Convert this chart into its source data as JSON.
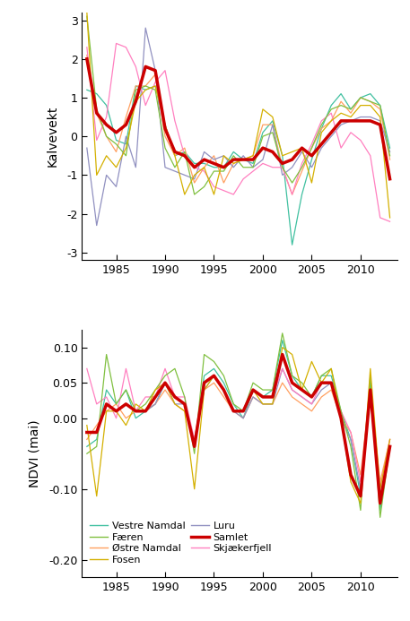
{
  "years": [
    1982,
    1983,
    1984,
    1985,
    1986,
    1987,
    1988,
    1989,
    1990,
    1991,
    1992,
    1993,
    1994,
    1995,
    1996,
    1997,
    1998,
    1999,
    2000,
    2001,
    2002,
    2003,
    2004,
    2005,
    2006,
    2007,
    2008,
    2009,
    2010,
    2011,
    2012,
    2013
  ],
  "kalve_vestre_namdal": [
    1.2,
    1.1,
    0.8,
    -0.1,
    -0.2,
    1.3,
    1.2,
    1.3,
    0.3,
    -0.5,
    -0.4,
    -0.7,
    -0.7,
    -0.8,
    -0.8,
    -0.4,
    -0.6,
    -0.7,
    0.1,
    0.4,
    -0.5,
    -2.8,
    -1.5,
    -0.6,
    0.2,
    0.8,
    1.1,
    0.7,
    1.0,
    1.1,
    0.8,
    -0.3
  ],
  "kalve_ostre_namdal": [
    2.1,
    0.6,
    0.0,
    -0.4,
    0.5,
    1.3,
    1.3,
    1.6,
    0.0,
    -0.5,
    -0.3,
    -1.2,
    -0.8,
    -0.5,
    -1.2,
    -0.7,
    -0.6,
    -0.5,
    0.3,
    0.3,
    -0.8,
    -1.5,
    -0.9,
    -0.3,
    0.2,
    0.4,
    0.9,
    0.6,
    1.0,
    0.9,
    0.7,
    -0.6
  ],
  "kalve_luru": [
    -0.3,
    -2.3,
    -1.0,
    -1.3,
    0.0,
    -0.8,
    2.8,
    1.7,
    -0.8,
    -0.9,
    -1.0,
    -1.1,
    -0.4,
    -0.6,
    -0.5,
    -0.8,
    -0.5,
    -0.8,
    -0.6,
    0.3,
    -1.0,
    -0.8,
    -0.4,
    -0.8,
    -0.3,
    0.0,
    0.3,
    0.4,
    0.5,
    0.5,
    0.4,
    -0.4
  ],
  "kalve_skjakerfjell": [
    2.3,
    -0.1,
    0.5,
    2.4,
    2.3,
    1.8,
    0.8,
    1.4,
    1.7,
    0.4,
    -0.5,
    -0.8,
    -0.9,
    -1.3,
    -1.4,
    -1.5,
    -1.1,
    -0.9,
    -0.7,
    -0.8,
    -0.8,
    -1.5,
    -0.7,
    -0.2,
    0.4,
    0.6,
    -0.3,
    0.1,
    -0.1,
    -0.5,
    -2.1,
    -2.2
  ],
  "kalve_faeren": [
    3.1,
    0.7,
    0.0,
    -0.2,
    -0.5,
    1.2,
    1.3,
    1.2,
    -0.3,
    -0.8,
    -0.4,
    -1.5,
    -1.3,
    -0.9,
    -0.9,
    -0.5,
    -0.8,
    -0.8,
    0.0,
    0.1,
    -0.8,
    -1.2,
    -0.8,
    -0.3,
    0.3,
    0.7,
    0.8,
    0.7,
    1.0,
    0.9,
    0.8,
    -0.5
  ],
  "kalve_fosen": [
    3.2,
    -1.0,
    -0.5,
    -0.8,
    -0.3,
    0.9,
    1.2,
    1.3,
    0.3,
    -0.5,
    -1.5,
    -1.0,
    -0.8,
    -1.5,
    -0.5,
    -0.7,
    -0.6,
    -0.5,
    0.7,
    0.5,
    -0.5,
    -0.4,
    -0.3,
    -1.2,
    0.1,
    0.4,
    0.6,
    0.5,
    0.8,
    0.8,
    0.5,
    -2.1
  ],
  "kalve_samlet": [
    2.0,
    0.6,
    0.3,
    0.1,
    0.3,
    0.9,
    1.8,
    1.7,
    0.2,
    -0.4,
    -0.5,
    -0.8,
    -0.6,
    -0.7,
    -0.8,
    -0.6,
    -0.6,
    -0.6,
    -0.3,
    -0.4,
    -0.7,
    -0.6,
    -0.3,
    -0.5,
    -0.2,
    0.1,
    0.4,
    0.4,
    0.4,
    0.4,
    0.3,
    -1.1
  ],
  "ndvi_vestre_namdal": [
    -0.04,
    -0.03,
    0.04,
    0.02,
    0.04,
    0.0,
    0.01,
    0.02,
    0.05,
    0.03,
    0.02,
    -0.04,
    0.06,
    0.07,
    0.05,
    0.02,
    0.0,
    0.04,
    0.03,
    0.04,
    0.11,
    0.06,
    0.04,
    0.03,
    0.06,
    0.06,
    0.01,
    -0.03,
    -0.11,
    0.05,
    -0.13,
    -0.04
  ],
  "ndvi_ostre_namdal": [
    -0.03,
    -0.01,
    0.01,
    0.02,
    0.0,
    0.01,
    0.01,
    0.02,
    0.04,
    0.02,
    0.01,
    -0.03,
    0.04,
    0.05,
    0.03,
    0.01,
    0.0,
    0.03,
    0.02,
    0.02,
    0.05,
    0.03,
    0.02,
    0.01,
    0.03,
    0.04,
    0.0,
    -0.02,
    -0.08,
    0.04,
    -0.09,
    -0.03
  ],
  "ndvi_luru": [
    -0.02,
    -0.02,
    0.02,
    0.01,
    0.02,
    0.01,
    0.01,
    0.02,
    0.05,
    0.02,
    0.02,
    -0.03,
    0.04,
    0.06,
    0.04,
    0.01,
    0.0,
    0.03,
    0.02,
    0.02,
    0.07,
    0.04,
    0.03,
    0.02,
    0.04,
    0.05,
    0.0,
    -0.03,
    -0.1,
    0.04,
    -0.11,
    -0.04
  ],
  "ndvi_skjakerfjell": [
    0.07,
    0.02,
    0.03,
    0.0,
    0.07,
    0.01,
    0.03,
    0.03,
    0.07,
    0.03,
    0.03,
    -0.03,
    0.05,
    0.06,
    0.04,
    0.01,
    0.01,
    0.04,
    0.03,
    0.03,
    0.07,
    0.04,
    0.03,
    0.02,
    0.05,
    0.05,
    0.01,
    -0.02,
    -0.09,
    0.04,
    -0.1,
    -0.03
  ],
  "ndvi_faeren": [
    -0.05,
    -0.04,
    0.09,
    0.02,
    0.04,
    0.01,
    0.02,
    0.04,
    0.06,
    0.07,
    0.03,
    -0.05,
    0.09,
    0.08,
    0.06,
    0.02,
    0.01,
    0.05,
    0.04,
    0.04,
    0.12,
    0.06,
    0.05,
    0.03,
    0.06,
    0.07,
    0.01,
    -0.04,
    -0.13,
    0.06,
    -0.14,
    -0.04
  ],
  "ndvi_fosen": [
    -0.01,
    -0.11,
    0.01,
    0.01,
    -0.01,
    0.02,
    0.01,
    0.04,
    0.05,
    0.02,
    0.01,
    -0.1,
    0.04,
    0.06,
    0.04,
    0.01,
    0.01,
    0.04,
    0.02,
    0.02,
    0.1,
    0.09,
    0.04,
    0.08,
    0.05,
    0.07,
    0.0,
    -0.09,
    -0.12,
    0.07,
    -0.1,
    -0.03
  ],
  "ndvi_samlet": [
    -0.02,
    -0.02,
    0.02,
    0.01,
    0.02,
    0.01,
    0.01,
    0.03,
    0.05,
    0.03,
    0.02,
    -0.04,
    0.05,
    0.06,
    0.04,
    0.01,
    0.01,
    0.04,
    0.03,
    0.03,
    0.09,
    0.05,
    0.04,
    0.03,
    0.05,
    0.05,
    0.0,
    -0.08,
    -0.11,
    0.04,
    -0.12,
    -0.04
  ],
  "colors": {
    "vestre_namdal": "#40C0A0",
    "ostre_namdal": "#FFA060",
    "luru": "#9090C0",
    "skjakerfjell": "#FF80C0",
    "faeren": "#80C040",
    "fosen": "#D4B000",
    "samlet": "#CC0000"
  },
  "legend_labels": {
    "vestre_namdal": "Vestre Namdal",
    "ostre_namdal": "Østre Namdal",
    "luru": "Luru",
    "skjakerfjell": "Skjækerfjell",
    "faeren": "Færen",
    "fosen": "Fosen",
    "samlet": "Samlet"
  },
  "kalve_ylim": [
    -3.2,
    3.2
  ],
  "kalve_yticks": [
    -3,
    -2,
    -1,
    0,
    1,
    2,
    3
  ],
  "kalve_ylabel": "Kalvevekt",
  "ndvi_ylim": [
    -0.225,
    0.125
  ],
  "ndvi_yticks": [
    -0.2,
    -0.1,
    0.0,
    0.05,
    0.1
  ],
  "ndvi_ylabel": "NDVI (mai)",
  "xlim": [
    1981.5,
    2013.8
  ],
  "xticks": [
    1985,
    1990,
    1995,
    2000,
    2005,
    2010
  ],
  "background_color": "#FFFFFF"
}
